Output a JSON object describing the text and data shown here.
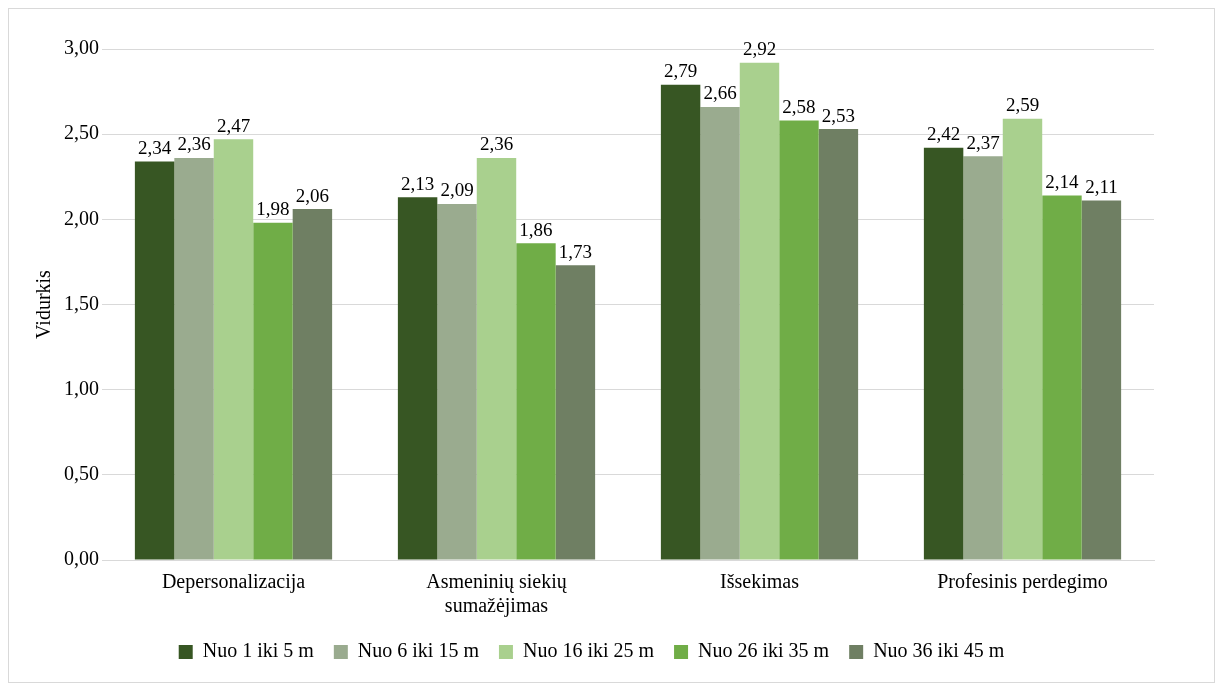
{
  "chart_data": {
    "type": "bar",
    "ylabel": "Vidurkis",
    "categories": [
      "Depersonalizacija",
      "Asmeninių siekių sumažėjimas",
      "Išsekimas",
      "Profesinis perdegimo"
    ],
    "series": [
      {
        "name": "Nuo 1 iki 5 m",
        "color": "#375623",
        "values": [
          2.34,
          2.13,
          2.79,
          2.42
        ],
        "value_labels": [
          "2,34",
          "2,13",
          "2,79",
          "2,42"
        ]
      },
      {
        "name": "Nuo 6 iki 15 m",
        "color": "#9aab8f",
        "values": [
          2.36,
          2.09,
          2.66,
          2.37
        ],
        "value_labels": [
          "2,36",
          "2,09",
          "2,66",
          "2,37"
        ]
      },
      {
        "name": "Nuo 16 iki 25 m",
        "color": "#a9d08e",
        "values": [
          2.47,
          2.36,
          2.92,
          2.59
        ],
        "value_labels": [
          "2,47",
          "2,36",
          "2,92",
          "2,59"
        ]
      },
      {
        "name": "Nuo 26 iki 35 m",
        "color": "#70ad47",
        "values": [
          1.98,
          1.86,
          2.58,
          2.14
        ],
        "value_labels": [
          "1,98",
          "1,86",
          "2,58",
          "2,14"
        ]
      },
      {
        "name": "Nuo 36 iki 45 m",
        "color": "#6f7f63",
        "values": [
          2.06,
          1.73,
          2.53,
          2.11
        ],
        "value_labels": [
          "2,06",
          "1,73",
          "2,53",
          "2,11"
        ]
      }
    ],
    "ylim": [
      0,
      3
    ],
    "yticks": [
      {
        "value": 0,
        "label": "0,00"
      },
      {
        "value": 0.5,
        "label": "0,50"
      },
      {
        "value": 1,
        "label": "1,00"
      },
      {
        "value": 1.5,
        "label": "1,50"
      },
      {
        "value": 2,
        "label": "2,00"
      },
      {
        "value": 2.5,
        "label": "2,50"
      },
      {
        "value": 3,
        "label": "3,00"
      }
    ],
    "grid": "y",
    "legend": "bottom"
  }
}
